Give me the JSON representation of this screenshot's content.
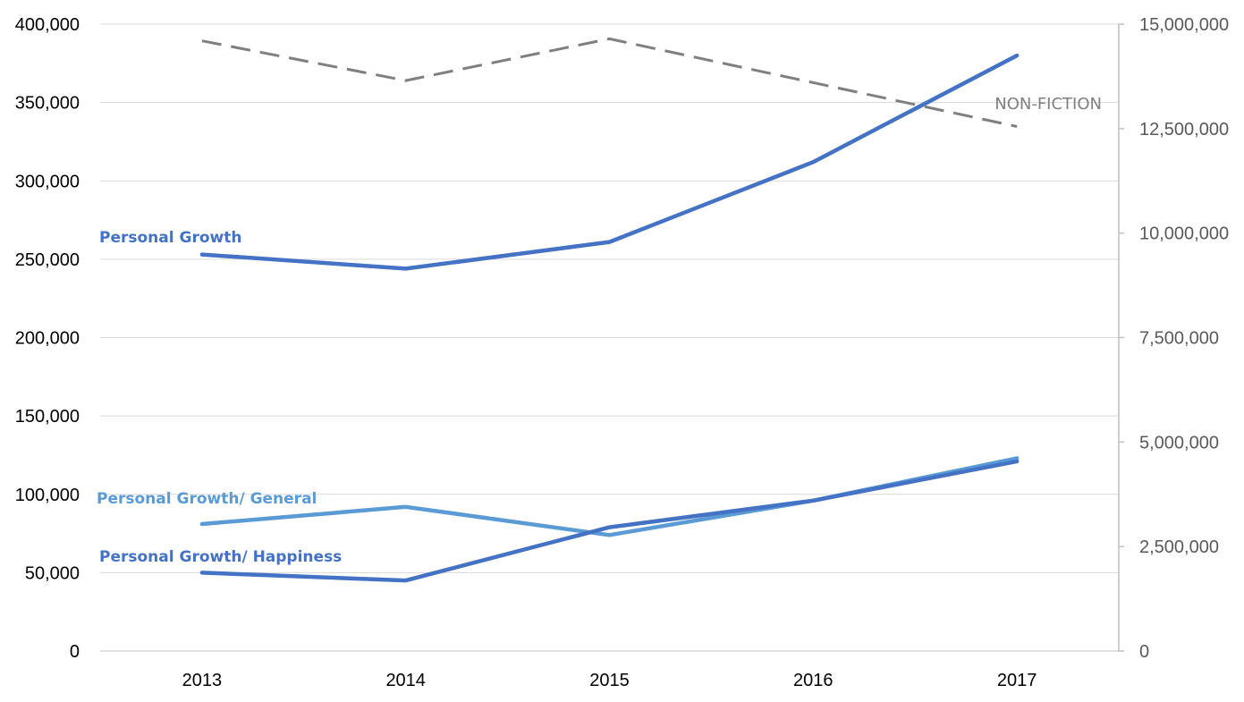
{
  "chart_data": {
    "type": "line",
    "title": "",
    "xlabel": "",
    "ylabel": "",
    "categories": [
      "2013",
      "2014",
      "2015",
      "2016",
      "2017"
    ],
    "ylim_left": [
      0,
      400000
    ],
    "ylim_right": [
      0,
      15000000
    ],
    "left_ticks": [
      "0",
      "50,000",
      "100,000",
      "150,000",
      "200,000",
      "250,000",
      "300,000",
      "350,000",
      "400,000"
    ],
    "right_ticks": [
      "0",
      "2,500,000",
      "5,000,000",
      "7,500,000",
      "10,000,000",
      "12,500,000",
      "15,000,000"
    ],
    "grid": true,
    "legend": "none (direct labels)",
    "series": [
      {
        "name": "Personal Growth",
        "axis": "left",
        "color": "#4472c4",
        "style": "solid",
        "values": [
          253000,
          244000,
          261000,
          312000,
          380000
        ]
      },
      {
        "name": "Personal Growth/ General",
        "axis": "left",
        "color": "#5b9bd5",
        "style": "solid",
        "values": [
          81000,
          92000,
          74000,
          96000,
          123000
        ]
      },
      {
        "name": "Personal Growth/ Happiness",
        "axis": "left",
        "color": "#4472c4",
        "style": "solid",
        "values": [
          50000,
          45000,
          79000,
          96000,
          121000
        ]
      },
      {
        "name": "NON-FICTION",
        "axis": "right",
        "color": "#7f7f7f",
        "style": "dashed",
        "values": [
          14600000,
          13650000,
          14650000,
          13600000,
          12550000
        ]
      }
    ]
  }
}
